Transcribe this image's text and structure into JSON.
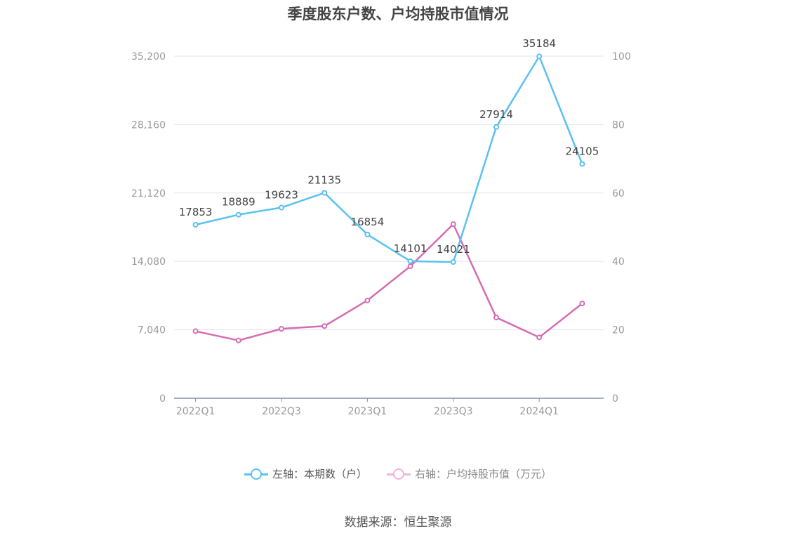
{
  "chart_data": {
    "type": "line",
    "title": "季度股东户数、户均持股市值情况",
    "categories": [
      "2022Q1",
      "2022Q2",
      "2022Q3",
      "2022Q4",
      "2023Q1",
      "2023Q2",
      "2023Q3",
      "2023Q4",
      "2024Q1",
      "2024Q2"
    ],
    "x_tick_labels": [
      "2022Q1",
      "2022Q3",
      "2023Q1",
      "2023Q3",
      "2024Q1"
    ],
    "left_axis": {
      "ylim": [
        0,
        35200
      ],
      "ticks": [
        "0",
        "7,040",
        "14,080",
        "21,120",
        "28,160",
        "35,200"
      ]
    },
    "right_axis": {
      "ylim": [
        0,
        100
      ],
      "ticks": [
        "0",
        "20",
        "40",
        "60",
        "80",
        "100"
      ]
    },
    "grid": true,
    "legend_position": "bottom",
    "series": [
      {
        "name": "左轴：本期数（户）",
        "axis": "left",
        "color": "#5bc0f0",
        "values": [
          17853,
          18889,
          19623,
          21135,
          16854,
          14101,
          14021,
          27914,
          35184,
          24105
        ],
        "labels": [
          "17853",
          "18889",
          "19623",
          "21135",
          "16854",
          "14101",
          "14021",
          "27914",
          "35184",
          "24105"
        ]
      },
      {
        "name": "右轴：户均持股市值（万元）",
        "axis": "right",
        "color": "#d66cb4",
        "values": [
          19.6,
          16.9,
          20.3,
          21.1,
          28.6,
          38.6,
          50.9,
          23.6,
          17.8,
          27.7
        ]
      }
    ]
  },
  "footer": {
    "source": "数据来源：恒生聚源"
  }
}
